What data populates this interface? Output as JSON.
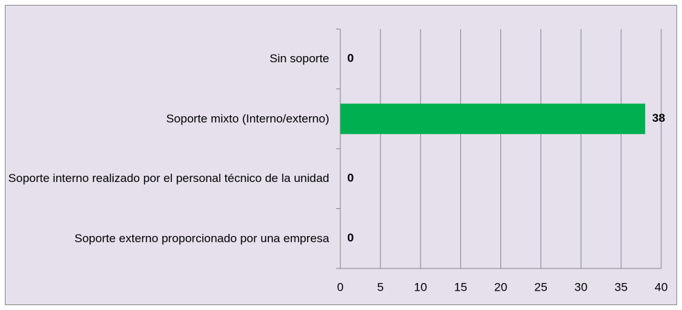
{
  "chart_data": {
    "type": "bar",
    "orientation": "horizontal",
    "categories": [
      "Sin soporte",
      "Soporte mixto (Interno/externo)",
      "Soporte interno realizado por el personal técnico de la unidad",
      "Soporte externo proporcionado por una empresa"
    ],
    "values": [
      0,
      38,
      0,
      0
    ],
    "color": "#00b050",
    "xlim": [
      0,
      40
    ],
    "xticks": [
      0,
      5,
      10,
      15,
      20,
      25,
      30,
      35,
      40
    ],
    "grid": true
  }
}
